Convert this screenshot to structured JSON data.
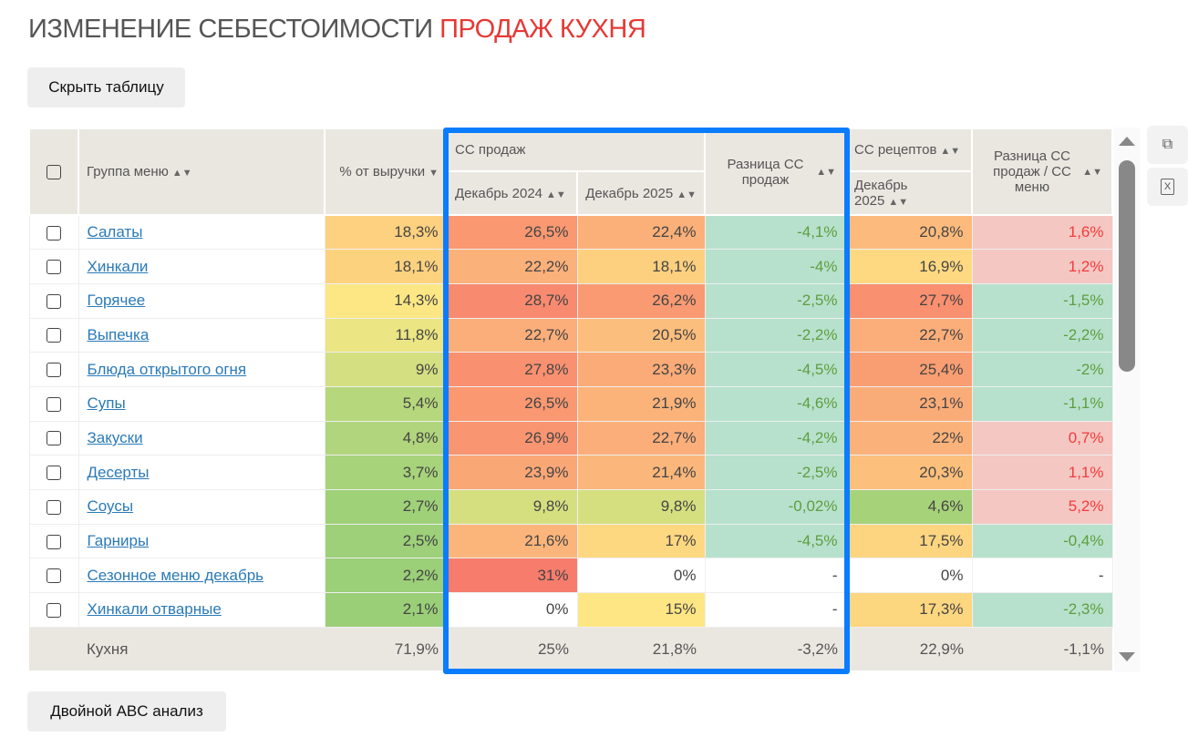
{
  "title": {
    "main": "ИЗМЕНЕНИЕ СЕБЕСТОИМОСТИ",
    "accent": "ПРОДАЖ КУХНЯ"
  },
  "buttons": {
    "hide_table": "Скрыть таблицу",
    "abc": "Двойной ABC анализ"
  },
  "header": {
    "group": "Группа меню",
    "pct": "% от выручки",
    "cc_sales": "СС продаж",
    "dec2024": "Декабрь 2024",
    "dec2025": "Декабрь 2025",
    "diff": "Разница СС продаж",
    "cc_recipes": "СС рецептов",
    "dec2025b": "Декабрь 2025",
    "diff_menu": "Разница СС продаж / СС меню"
  },
  "colors": {
    "highlight": "#0a7cff",
    "link": "#2a7ab8",
    "positive_bg": "#b7e1cd",
    "negative_bg": "#f4c7c3",
    "title_accent": "#e53935"
  },
  "rows": [
    [
      "Салаты",
      "18,3%",
      "26,5%",
      "22,4%",
      "-4,1%",
      "20,8%",
      "1,6%"
    ],
    [
      "Хинкали",
      "18,1%",
      "22,2%",
      "18,1%",
      "-4%",
      "16,9%",
      "1,2%"
    ],
    [
      "Горячее",
      "14,3%",
      "28,7%",
      "26,2%",
      "-2,5%",
      "27,7%",
      "-1,5%"
    ],
    [
      "Выпечка",
      "11,8%",
      "22,7%",
      "20,5%",
      "-2,2%",
      "22,7%",
      "-2,2%"
    ],
    [
      "Блюда открытого огня",
      "9%",
      "27,8%",
      "23,3%",
      "-4,5%",
      "25,4%",
      "-2%"
    ],
    [
      "Супы",
      "5,4%",
      "26,5%",
      "21,9%",
      "-4,6%",
      "23,1%",
      "-1,1%"
    ],
    [
      "Закуски",
      "4,8%",
      "26,9%",
      "22,7%",
      "-4,2%",
      "22%",
      "0,7%"
    ],
    [
      "Десерты",
      "3,7%",
      "23,9%",
      "21,4%",
      "-2,5%",
      "20,3%",
      "1,1%"
    ],
    [
      "Соусы",
      "2,7%",
      "9,8%",
      "9,8%",
      "-0,02%",
      "4,6%",
      "5,2%"
    ],
    [
      "Гарниры",
      "2,5%",
      "21,6%",
      "17%",
      "-4,5%",
      "17,5%",
      "-0,4%"
    ],
    [
      "Сезонное меню декабрь",
      "2,2%",
      "31%",
      "0%",
      "-",
      "0%",
      "-"
    ],
    [
      "Хинкали отварные",
      "2,1%",
      "0%",
      "15%",
      "-",
      "17,3%",
      "-2,3%"
    ]
  ],
  "footer": [
    "Кухня",
    "71,9%",
    "25%",
    "21,8%",
    "-3,2%",
    "22,9%",
    "-1,1%"
  ],
  "icons": {
    "copy": "copy-icon",
    "excel": "excel-icon"
  }
}
